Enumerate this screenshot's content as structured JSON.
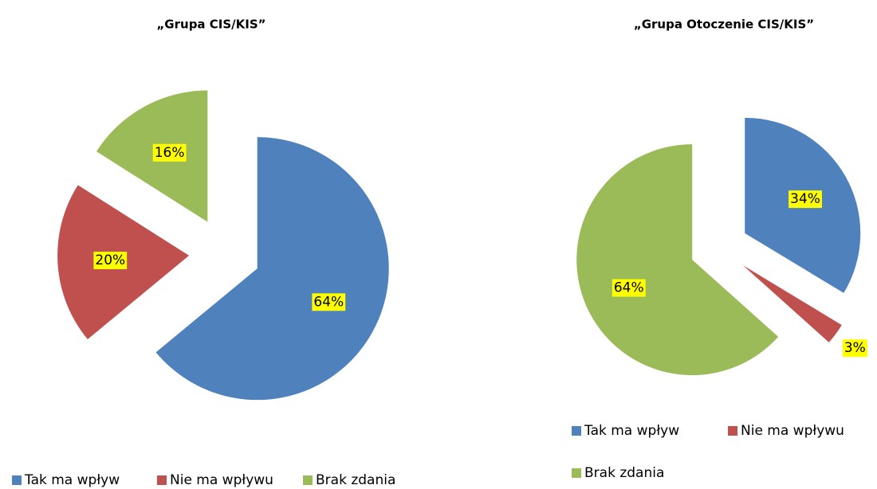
{
  "chart_data": [
    {
      "type": "pie",
      "title": "„Grupa CIS/KIS”",
      "categories": [
        "Tak ma wpływ",
        "Nie ma wpływu",
        "Brak zdania"
      ],
      "values": [
        64,
        20,
        16
      ],
      "value_labels": [
        "64%",
        "20%",
        "16%"
      ],
      "colors": [
        "#4f81bd",
        "#c0504d",
        "#9bbb59"
      ],
      "legend": "bottom"
    },
    {
      "type": "pie",
      "title": "„Grupa Otoczenie CIS/KIS”",
      "categories": [
        "Tak ma wpływ",
        "Nie ma wpływu",
        "Brak zdania"
      ],
      "values": [
        34,
        3,
        64
      ],
      "value_labels": [
        "34%",
        "3%",
        "64%"
      ],
      "colors": [
        "#4f81bd",
        "#c0504d",
        "#9bbb59"
      ],
      "legend": "bottom"
    }
  ]
}
